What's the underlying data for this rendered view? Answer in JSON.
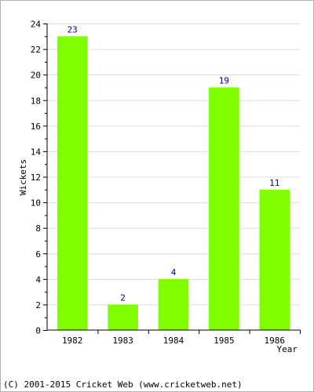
{
  "chart_data": {
    "type": "bar",
    "title": "",
    "xlabel": "Year",
    "ylabel": "Wickets",
    "categories": [
      "1982",
      "1983",
      "1984",
      "1985",
      "1986"
    ],
    "values": [
      23,
      2,
      4,
      19,
      11
    ],
    "data_labels": [
      "23",
      "2",
      "4",
      "19",
      "11"
    ],
    "ylim": [
      0,
      24
    ],
    "yticks": [
      0,
      2,
      4,
      6,
      8,
      10,
      12,
      14,
      16,
      18,
      20,
      22,
      24
    ],
    "ytick_labels": [
      "0",
      "2",
      "4",
      "6",
      "8",
      "10",
      "12",
      "14",
      "16",
      "18",
      "20",
      "22",
      "24"
    ],
    "grid": true,
    "legend": "none",
    "bar_color": "#80ff00",
    "label_color": "#000080"
  },
  "footer": {
    "copyright": "(C) 2001-2015 Cricket Web (www.cricketweb.net)"
  }
}
